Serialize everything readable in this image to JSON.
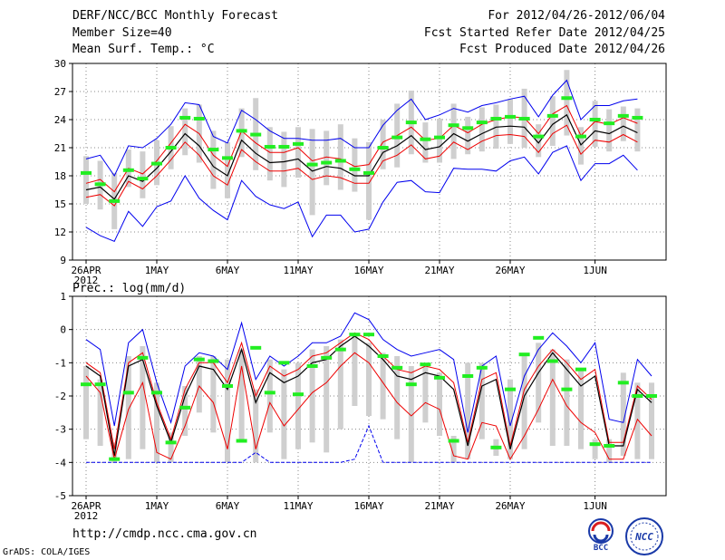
{
  "header": {
    "title": "DERF/NCC/BCC Monthly Forecast",
    "member_size": "Member Size=40",
    "variable": "Mean Surf. Temp.: °C",
    "period": "For 2012/04/26-2012/06/04",
    "start_date": "Fcst Started Refer Date 2012/04/25",
    "produced_date": "Fcst Produced Date 2012/04/26"
  },
  "footer": {
    "url": "http://cmdp.ncc.cma.gov.cn",
    "grads": "GrADS: COLA/IGES",
    "logo_bcc": "BCC",
    "logo_ncc": "NCC"
  },
  "colors": {
    "max_min": "#0000ee",
    "spread": "#ee0000",
    "mean": "#000000",
    "box": "#cfcfcf",
    "obs": "#22ee22",
    "grid": "#888888"
  },
  "chart_data": [
    {
      "type": "line",
      "title": "Mean Surf. Temp.: °C",
      "x_tick_labels": [
        "26APR",
        "1MAY",
        "6MAY",
        "11MAY",
        "16MAY",
        "21MAY",
        "26MAY",
        "1JUN"
      ],
      "x_tick_days": [
        0,
        5,
        10,
        15,
        20,
        25,
        30,
        36
      ],
      "x_year_label": "2012",
      "ylim": [
        9,
        30
      ],
      "yticks": [
        9,
        12,
        15,
        18,
        21,
        24,
        27,
        30
      ],
      "series": [
        {
          "name": "max",
          "values": [
            19.8,
            20.2,
            18,
            21.2,
            21,
            22,
            23.5,
            25.8,
            25.6,
            22.2,
            21.5,
            25,
            24,
            22.8,
            22,
            22,
            21.8,
            21.8,
            22,
            21,
            21,
            23.4,
            25,
            26.2,
            24,
            24.5,
            25.2,
            24.8,
            25.5,
            25.8,
            26.2,
            26.5,
            24.3,
            26.6,
            28.2,
            24,
            25.5,
            25.5,
            26,
            26.2
          ]
        },
        {
          "name": "upper",
          "values": [
            17.2,
            17.6,
            16.3,
            18.8,
            18.2,
            19.6,
            21.5,
            23.5,
            22.5,
            20.2,
            19,
            22.8,
            21.5,
            20.5,
            20.5,
            21,
            19.6,
            20,
            19.8,
            19,
            19.2,
            21.6,
            22.3,
            23.2,
            21.8,
            22,
            23.4,
            22.6,
            23.5,
            24,
            24.3,
            24.2,
            22.5,
            24.6,
            25.5,
            22.3,
            23.8,
            23.5,
            24.2,
            23.6
          ]
        },
        {
          "name": "mean",
          "values": [
            16.5,
            16.8,
            15.5,
            18,
            17.4,
            18.8,
            20.6,
            22.5,
            21.2,
            19,
            18,
            21.8,
            20.4,
            19.4,
            19.5,
            19.8,
            18.5,
            19,
            18.8,
            18,
            18,
            20.5,
            21.2,
            22.3,
            20.8,
            21.1,
            22.5,
            21.7,
            22.5,
            23.2,
            23.3,
            23.2,
            21.5,
            23.5,
            24.5,
            21.3,
            22.8,
            22.5,
            23.3,
            22.6
          ]
        },
        {
          "name": "lower",
          "values": [
            15.7,
            16,
            14.8,
            17.4,
            16.6,
            18,
            19.7,
            21.6,
            20.2,
            18,
            17,
            20.8,
            19.5,
            18.5,
            18.5,
            18.8,
            17.6,
            18,
            17.8,
            17.2,
            17.2,
            19.6,
            20.2,
            21.3,
            19.8,
            20.1,
            21.6,
            20.8,
            21.7,
            22.3,
            22.4,
            22.2,
            20.5,
            22.5,
            23.4,
            20.3,
            21.8,
            21.6,
            22.4,
            21.6
          ]
        },
        {
          "name": "min",
          "values": [
            12.5,
            11.6,
            11,
            14.2,
            12.6,
            14.7,
            15.3,
            18,
            15.6,
            14.3,
            13.3,
            17.5,
            15.8,
            14.9,
            14.5,
            15.2,
            11.5,
            13.8,
            13.8,
            12,
            12.3,
            15.2,
            17.3,
            17.5,
            16.3,
            16.2,
            18.8,
            18.7,
            18.7,
            18.5,
            19.6,
            20,
            18.2,
            20.5,
            21.2,
            17.5,
            19.3,
            19.3,
            20.2,
            18.6
          ]
        },
        {
          "name": "obs",
          "values": [
            18.3,
            17.1,
            15.3,
            18.6,
            17.7,
            19.3,
            21,
            24.2,
            24.1,
            20.8,
            19.9,
            22.8,
            22.4,
            21.1,
            21.1,
            21.4,
            19.2,
            19.4,
            19.6,
            18.7,
            18.3,
            21,
            22.1,
            23.7,
            21.9,
            22.1,
            23.4,
            23.1,
            23.7,
            24.1,
            24.3,
            24.1,
            22.2,
            24.4,
            26.3,
            22.2,
            24,
            23.6,
            24.4,
            24.2
          ]
        }
      ],
      "boxes": {
        "high": [
          20.1,
          19.6,
          18.3,
          20.8,
          20.6,
          21.8,
          23.3,
          25.2,
          25.6,
          22.8,
          21.6,
          25.2,
          26.3,
          23.2,
          22.7,
          23.2,
          23,
          22.8,
          23.5,
          22,
          21.6,
          24,
          25.7,
          27.1,
          23.7,
          24.1,
          25.7,
          24.3,
          25.3,
          25.6,
          26.2,
          27.3,
          23.5,
          26.5,
          29.3,
          23.2,
          26,
          25.1,
          25.4,
          25.2
        ],
        "low": [
          15,
          14.4,
          12.3,
          16.8,
          15.6,
          17,
          18.7,
          20.2,
          19.4,
          16.6,
          15.6,
          20,
          18.6,
          17.5,
          16.8,
          17.8,
          13.8,
          17,
          16.5,
          16.3,
          13.3,
          18.7,
          18.9,
          20.3,
          19.4,
          19.4,
          19.8,
          20.3,
          20.6,
          20.9,
          21.4,
          21,
          20,
          21.2,
          22.3,
          19.2,
          21.1,
          20.6,
          21.7,
          20.6
        ]
      }
    },
    {
      "type": "line",
      "title": "Prec.: log(mm/d)",
      "x_tick_labels": [
        "26APR",
        "1MAY",
        "6MAY",
        "11MAY",
        "16MAY",
        "21MAY",
        "26MAY",
        "1JUN"
      ],
      "x_tick_days": [
        0,
        5,
        10,
        15,
        20,
        25,
        30,
        36
      ],
      "x_year_label": "2012",
      "ylim": [
        -5,
        1
      ],
      "yticks": [
        -5,
        -4,
        -3,
        -2,
        -1,
        0,
        1
      ],
      "series": [
        {
          "name": "max",
          "values": [
            -0.3,
            -0.6,
            -2.9,
            -0.4,
            0,
            -1.6,
            -2.8,
            -1.1,
            -0.7,
            -0.8,
            -1.2,
            0.2,
            -1.5,
            -0.8,
            -1.1,
            -0.8,
            -0.4,
            -0.4,
            -0.2,
            0.5,
            0.3,
            -0.3,
            -0.6,
            -0.8,
            -0.7,
            -0.6,
            -0.9,
            -3.1,
            -1.1,
            -0.8,
            -2.9,
            -1.4,
            -0.6,
            -0.1,
            -0.5,
            -1,
            -0.4,
            -2.7,
            -2.8,
            -0.9,
            -1.4
          ]
        },
        {
          "name": "upper",
          "values": [
            -1,
            -1.3,
            -3.6,
            -1,
            -0.7,
            -2.2,
            -3.3,
            -1.8,
            -1,
            -1,
            -1.6,
            -0.4,
            -2,
            -1.1,
            -1.4,
            -1.2,
            -0.8,
            -0.7,
            -0.4,
            -0.1,
            -0.3,
            -0.8,
            -1.2,
            -1.3,
            -1.1,
            -1.2,
            -1.6,
            -3.4,
            -1.5,
            -1.3,
            -3.5,
            -1.8,
            -1.1,
            -0.6,
            -1,
            -1.5,
            -1.2,
            -3.4,
            -3.4,
            -1.7,
            -2.1
          ]
        },
        {
          "name": "mean",
          "values": [
            -1.1,
            -1.4,
            -3.8,
            -1.1,
            -0.9,
            -2.3,
            -3.4,
            -2,
            -1.1,
            -1.2,
            -1.8,
            -0.6,
            -2.2,
            -1.3,
            -1.6,
            -1.4,
            -1,
            -0.9,
            -0.5,
            -0.2,
            -0.5,
            -0.9,
            -1.4,
            -1.5,
            -1.3,
            -1.4,
            -1.8,
            -3.5,
            -1.7,
            -1.5,
            -3.6,
            -2,
            -1.3,
            -0.7,
            -1.2,
            -1.7,
            -1.4,
            -3.5,
            -3.5,
            -1.8,
            -2.2
          ]
        },
        {
          "name": "lower",
          "values": [
            -1.4,
            -1.9,
            -3.9,
            -2.4,
            -1.6,
            -3.7,
            -3.9,
            -2.9,
            -1.7,
            -2.2,
            -3.6,
            -1.1,
            -3.6,
            -2.2,
            -2.9,
            -2.4,
            -1.9,
            -1.6,
            -1.1,
            -0.7,
            -1,
            -1.6,
            -2.2,
            -2.6,
            -2.2,
            -2.4,
            -3.8,
            -3.9,
            -2.8,
            -2.9,
            -3.9,
            -3.2,
            -2.4,
            -1.5,
            -2.3,
            -2.8,
            -3.1,
            -3.9,
            -3.9,
            -2.7,
            -3.2
          ]
        },
        {
          "name": "min",
          "values": [
            -4,
            -4,
            -4,
            -4,
            -4,
            -4,
            -4,
            -4,
            -4,
            -4,
            -4,
            -4,
            -3.7,
            -4,
            -4,
            -4,
            -4,
            -4,
            -4,
            -3.9,
            -2.9,
            -4,
            -4,
            -4,
            -4,
            -4,
            -4,
            -4,
            -4,
            -4,
            -4,
            -4,
            -4,
            -4,
            -4,
            -4,
            -4,
            -4,
            -4,
            -4,
            -4
          ]
        },
        {
          "name": "obs",
          "values": [
            -1.65,
            -1.65,
            -3.9,
            -1.9,
            -0.85,
            -1.9,
            -3.4,
            -2.35,
            -0.9,
            -0.95,
            -1.7,
            -3.35,
            -0.55,
            -1.9,
            -1.0,
            -1.95,
            -1.1,
            -0.85,
            -0.6,
            -0.15,
            -0.15,
            -0.8,
            -1.15,
            -1.65,
            -1.05,
            -1.45,
            -3.35,
            -1.4,
            -1.15,
            -3.55,
            -1.8,
            -0.75,
            -0.25,
            -0.95,
            -1.8,
            -1.2,
            -3.45,
            -3.5,
            -1.6,
            -2.0,
            -2.0
          ]
        }
      ],
      "boxes": {
        "high": [
          -1.1,
          -1.5,
          -3.4,
          -0.8,
          -0.5,
          -1.6,
          -3.1,
          -1.7,
          -0.8,
          -0.8,
          -0.9,
          -0.6,
          -1.8,
          -0.9,
          -1.2,
          -1,
          -0.6,
          -0.5,
          -0.3,
          -0.2,
          -0.4,
          -0.7,
          -0.8,
          -1.1,
          -1.1,
          -1.3,
          -3.2,
          -1,
          -1,
          -3.3,
          -1.5,
          -0.7,
          -0.4,
          -0.6,
          -0.9,
          -1.2,
          -3.3,
          -3.3,
          -1.3,
          -1.6,
          -1.6
        ],
        "low": [
          -3.3,
          -3.5,
          -4,
          -3.9,
          -3.6,
          -4,
          -4,
          -3.2,
          -2.5,
          -3.1,
          -4,
          -3.4,
          -4,
          -3.1,
          -3.9,
          -3.6,
          -3.4,
          -3.7,
          -3,
          -2.3,
          -2.6,
          -2.7,
          -3.3,
          -4,
          -2.8,
          -3.2,
          -4,
          -3.9,
          -3.3,
          -3.8,
          -3.9,
          -3.6,
          -2.8,
          -3.5,
          -3.5,
          -3.6,
          -3.9,
          -4,
          -3.8,
          -3.9,
          -3.9
        ]
      }
    }
  ]
}
